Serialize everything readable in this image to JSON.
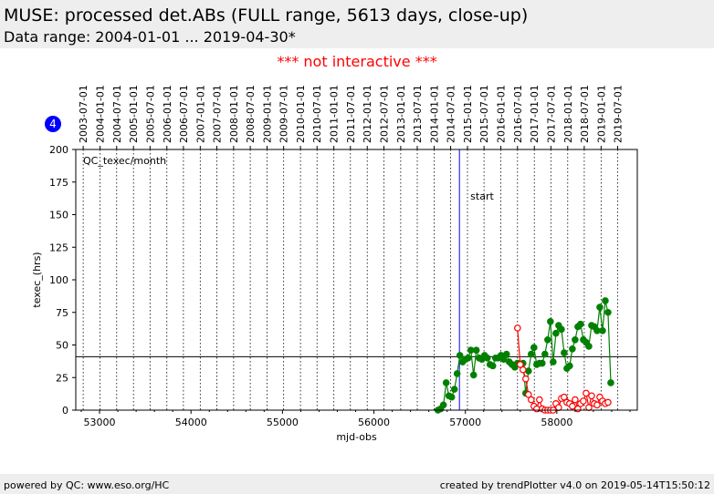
{
  "page": {
    "title": "MUSE: processed det.ABs (FULL range, 5613 days, close-up)",
    "subtitle": "Data range: 2004-01-01 ... 2019-04-30*",
    "notice": "*** not interactive ***",
    "footer_left": "powered by QC: www.eso.org/HC",
    "footer_right": "created by trendPlotter v4.0 on 2019-05-14T15:50:12"
  },
  "colors": {
    "series_green": "#008000",
    "series_red": "#ff0000",
    "marker_line": "#0000ff",
    "badge": "#0000ff"
  },
  "chart_data": {
    "type": "line",
    "panel_label": "QC_texec/month",
    "badge": "4",
    "xlabel": "mjd-obs",
    "ylabel": "texec_(hrs)",
    "xlim": [
      52740,
      58880
    ],
    "ylim": [
      0,
      200
    ],
    "xticks": [
      53000,
      54000,
      55000,
      56000,
      57000,
      58000
    ],
    "yticks": [
      0,
      25,
      50,
      75,
      100,
      125,
      150,
      175,
      200
    ],
    "top_axis_dates": [
      "2003-07-01",
      "2004-01-01",
      "2004-07-01",
      "2005-01-01",
      "2005-07-01",
      "2006-01-01",
      "2006-07-01",
      "2007-01-01",
      "2007-07-01",
      "2008-01-01",
      "2008-07-01",
      "2009-01-01",
      "2009-07-01",
      "2010-01-01",
      "2010-07-01",
      "2011-01-01",
      "2011-07-01",
      "2012-01-01",
      "2012-07-01",
      "2013-01-01",
      "2013-07-01",
      "2014-01-01",
      "2014-07-01",
      "2015-01-01",
      "2015-07-01",
      "2016-01-01",
      "2016-07-01",
      "2017-01-01",
      "2017-07-01",
      "2018-01-01",
      "2018-07-01",
      "2019-01-01",
      "2019-07-01"
    ],
    "top_axis_mjd": [
      52821,
      53006,
      53187,
      53371,
      53552,
      53736,
      53917,
      54101,
      54282,
      54466,
      54648,
      54832,
      55013,
      55197,
      55378,
      55562,
      55743,
      55927,
      56109,
      56293,
      56474,
      56658,
      56839,
      57023,
      57204,
      57388,
      57570,
      57754,
      57935,
      58119,
      58300,
      58484,
      58665
    ],
    "reference_line": {
      "y": 41
    },
    "marker": {
      "x": 56935,
      "label": "start"
    },
    "series": [
      {
        "style": "green-filled",
        "x": [
          56700,
          56730,
          56760,
          56790,
          56820,
          56850,
          56880,
          56910,
          56940,
          56970,
          57000,
          57030,
          57060,
          57090,
          57120,
          57150,
          57180,
          57210,
          57240,
          57270,
          57300,
          57330,
          57360,
          57390,
          57420,
          57450,
          57480,
          57510,
          57540,
          57570,
          57600,
          57630,
          57660,
          57690,
          57720,
          57750,
          57780,
          57810,
          57840,
          57870,
          57900,
          57930,
          57960,
          57990,
          58020,
          58050,
          58080,
          58110,
          58140,
          58170,
          58200,
          58230,
          58260,
          58290,
          58320,
          58350,
          58380,
          58410,
          58440,
          58470,
          58500,
          58530,
          58560,
          58590
        ],
        "y": [
          0,
          1,
          4,
          21,
          11,
          10,
          16,
          28,
          42,
          37,
          39,
          40,
          46,
          27,
          46,
          40,
          39,
          42,
          40,
          35,
          34,
          40,
          40,
          42,
          39,
          43,
          37,
          35,
          33,
          36,
          35,
          36,
          13,
          30,
          43,
          48,
          35,
          36,
          36,
          43,
          54,
          68,
          37,
          59,
          65,
          62,
          44,
          32,
          34,
          47,
          54,
          64,
          66,
          54,
          52,
          49,
          65,
          64,
          61,
          79,
          61,
          84,
          75,
          21
        ]
      },
      {
        "style": "red-open",
        "x": [
          57570,
          57600,
          57630,
          57660,
          57690,
          57720,
          57750,
          57780,
          57810,
          57840,
          57870,
          57900,
          57930,
          57960,
          57990,
          58020,
          58050,
          58080,
          58110,
          58140,
          58170,
          58200,
          58230,
          58260,
          58290,
          58320,
          58350,
          58380,
          58410,
          58440,
          58470,
          58500,
          58530,
          58560
        ],
        "y": [
          63,
          35,
          31,
          24,
          12,
          8,
          3,
          1,
          8,
          1,
          0,
          0,
          0,
          0,
          5,
          2,
          9,
          10,
          6,
          5,
          3,
          8,
          1,
          5,
          7,
          13,
          2,
          11,
          5,
          4,
          10,
          7,
          5,
          6
        ]
      }
    ]
  }
}
